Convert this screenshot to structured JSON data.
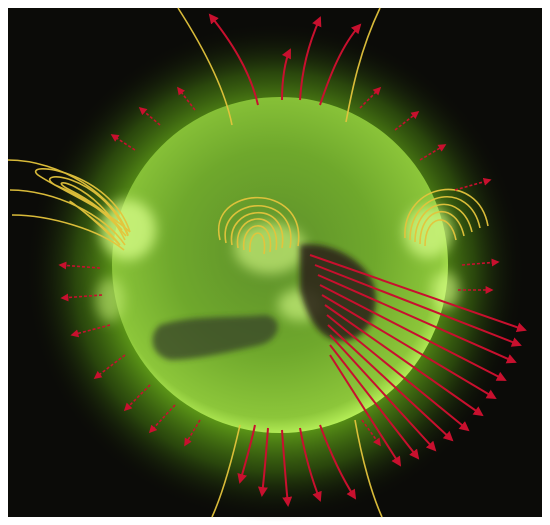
{
  "image": {
    "subject": "sun-corona-magnetic-field-illustration",
    "colors": {
      "background": "#0b0b08",
      "frame": "#ffffff",
      "disk_dark": "#3f6a1c",
      "disk_mid": "#6fa82c",
      "disk_bright": "#b9f25a",
      "corona_glow": "#7fd21e",
      "field_line": "#e4c43c",
      "arrow": "#c8102e",
      "coronal_hole": "#2a1f1a"
    }
  }
}
